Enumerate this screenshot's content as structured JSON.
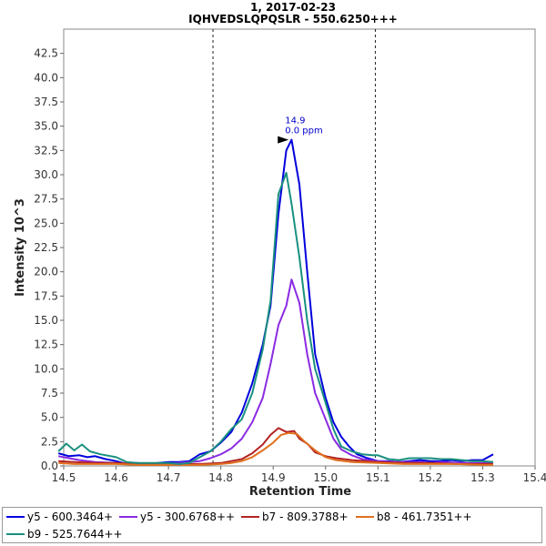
{
  "chart_data": {
    "type": "line",
    "title": "1, 2017-02-23",
    "subtitle": "IQHVEDSLQPQSLR - 550.6250+++",
    "xlabel": "Retention Time",
    "ylabel": "Intensity 10^3",
    "xlim": [
      14.5,
      15.4
    ],
    "ylim": [
      0,
      45
    ],
    "x_ticks": [
      "14.5",
      "14.6",
      "14.7",
      "14.8",
      "14.9",
      "15.0",
      "15.1",
      "15.2",
      "15.3",
      "15.4"
    ],
    "y_ticks": [
      "0.0",
      "2.5",
      "5.0",
      "7.5",
      "10.0",
      "12.5",
      "15.0",
      "17.5",
      "20.0",
      "22.5",
      "25.0",
      "27.5",
      "30.0",
      "32.5",
      "35.0",
      "37.5",
      "40.0",
      "42.5"
    ],
    "integration_bounds": [
      14.785,
      15.095
    ],
    "annotation": {
      "label": "14.9",
      "sublabel": "0.0 ppm",
      "x": 14.933,
      "y": 33.6
    },
    "legend_position": "bottom",
    "series": [
      {
        "name": "y5 - 600.3464+",
        "color": "#0000dd",
        "x": [
          14.49,
          14.51,
          14.53,
          14.545,
          14.56,
          14.58,
          14.6,
          14.62,
          14.64,
          14.66,
          14.68,
          14.7,
          14.72,
          14.74,
          14.76,
          14.78,
          14.8,
          14.82,
          14.84,
          14.86,
          14.88,
          14.895,
          14.91,
          14.925,
          14.935,
          14.95,
          14.965,
          14.98,
          15.0,
          15.015,
          15.03,
          15.045,
          15.06,
          15.08,
          15.1,
          15.12,
          15.14,
          15.16,
          15.18,
          15.2,
          15.22,
          15.24,
          15.26,
          15.28,
          15.3,
          15.32
        ],
        "values": [
          1.3,
          1.0,
          1.1,
          0.9,
          1.0,
          0.7,
          0.5,
          0.2,
          0.3,
          0.2,
          0.3,
          0.4,
          0.4,
          0.5,
          1.2,
          1.5,
          2.4,
          3.5,
          5.5,
          8.5,
          12.5,
          16.5,
          26.0,
          32.5,
          33.6,
          29.0,
          20.0,
          11.5,
          7.0,
          4.5,
          3.0,
          2.0,
          1.2,
          0.8,
          0.5,
          0.5,
          0.4,
          0.5,
          0.6,
          0.5,
          0.5,
          0.6,
          0.5,
          0.6,
          0.6,
          1.2
        ]
      },
      {
        "name": "y5 - 300.6768++",
        "color": "#8a2be2",
        "x": [
          14.49,
          14.51,
          14.53,
          14.56,
          14.6,
          14.64,
          14.68,
          14.72,
          14.76,
          14.78,
          14.8,
          14.82,
          14.84,
          14.86,
          14.88,
          14.895,
          14.91,
          14.925,
          14.935,
          14.95,
          14.965,
          14.98,
          15.0,
          15.015,
          15.03,
          15.05,
          15.07,
          15.1,
          15.14,
          15.18,
          15.2,
          15.22,
          15.26,
          15.3,
          15.32
        ],
        "values": [
          1.0,
          0.8,
          0.6,
          0.4,
          0.3,
          0.2,
          0.2,
          0.3,
          0.5,
          0.8,
          1.2,
          1.8,
          2.8,
          4.5,
          7.0,
          10.5,
          14.5,
          16.5,
          19.2,
          16.8,
          11.5,
          7.5,
          4.8,
          2.8,
          1.7,
          1.1,
          0.7,
          0.5,
          0.4,
          0.4,
          0.3,
          0.4,
          0.3,
          0.3,
          0.4
        ]
      },
      {
        "name": "b7 - 809.3788+",
        "color": "#b22222",
        "x": [
          14.49,
          14.52,
          14.56,
          14.6,
          14.64,
          14.68,
          14.72,
          14.76,
          14.8,
          14.82,
          14.84,
          14.86,
          14.88,
          14.895,
          14.91,
          14.925,
          14.94,
          14.95,
          14.965,
          14.98,
          15.0,
          15.02,
          15.05,
          15.1,
          15.15,
          15.2,
          15.25,
          15.3,
          15.32
        ],
        "values": [
          0.5,
          0.4,
          0.3,
          0.3,
          0.2,
          0.2,
          0.2,
          0.2,
          0.3,
          0.5,
          0.7,
          1.3,
          2.2,
          3.2,
          3.9,
          3.5,
          3.6,
          2.8,
          2.3,
          1.4,
          1.0,
          0.8,
          0.6,
          0.4,
          0.3,
          0.3,
          0.2,
          0.2,
          0.2
        ]
      },
      {
        "name": "b8 - 461.7351++",
        "color": "#e07020",
        "x": [
          14.49,
          14.52,
          14.56,
          14.6,
          14.64,
          14.68,
          14.72,
          14.76,
          14.8,
          14.82,
          14.84,
          14.86,
          14.88,
          14.9,
          14.915,
          14.93,
          14.945,
          14.96,
          14.98,
          15.0,
          15.02,
          15.05,
          15.1,
          15.15,
          15.2,
          15.25,
          15.3,
          15.32
        ],
        "values": [
          0.3,
          0.2,
          0.2,
          0.2,
          0.1,
          0.1,
          0.1,
          0.1,
          0.2,
          0.3,
          0.5,
          0.9,
          1.6,
          2.4,
          3.2,
          3.4,
          3.3,
          2.5,
          1.6,
          0.9,
          0.6,
          0.4,
          0.3,
          0.2,
          0.2,
          0.2,
          0.1,
          0.1
        ]
      },
      {
        "name": "b9 - 525.7644++",
        "color": "#1a9080",
        "x": [
          14.49,
          14.505,
          14.52,
          14.535,
          14.55,
          14.57,
          14.6,
          14.62,
          14.64,
          14.66,
          14.68,
          14.7,
          14.72,
          14.74,
          14.76,
          14.78,
          14.8,
          14.82,
          14.84,
          14.86,
          14.88,
          14.895,
          14.91,
          14.925,
          14.935,
          14.95,
          14.965,
          14.98,
          15.0,
          15.015,
          15.03,
          15.05,
          15.07,
          15.09,
          15.1,
          15.12,
          15.14,
          15.16,
          15.18,
          15.2,
          15.22,
          15.24,
          15.26,
          15.28,
          15.3,
          15.32
        ],
        "values": [
          1.5,
          2.3,
          1.6,
          2.2,
          1.5,
          1.2,
          0.9,
          0.4,
          0.3,
          0.3,
          0.3,
          0.3,
          0.2,
          0.3,
          0.9,
          1.5,
          2.5,
          3.8,
          4.8,
          7.5,
          12.0,
          17.0,
          28.0,
          30.2,
          27.0,
          21.5,
          15.0,
          10.0,
          6.5,
          3.8,
          2.0,
          1.5,
          1.2,
          1.1,
          1.1,
          0.7,
          0.6,
          0.8,
          0.8,
          0.8,
          0.7,
          0.7,
          0.6,
          0.5,
          0.5,
          0.4
        ]
      }
    ]
  }
}
